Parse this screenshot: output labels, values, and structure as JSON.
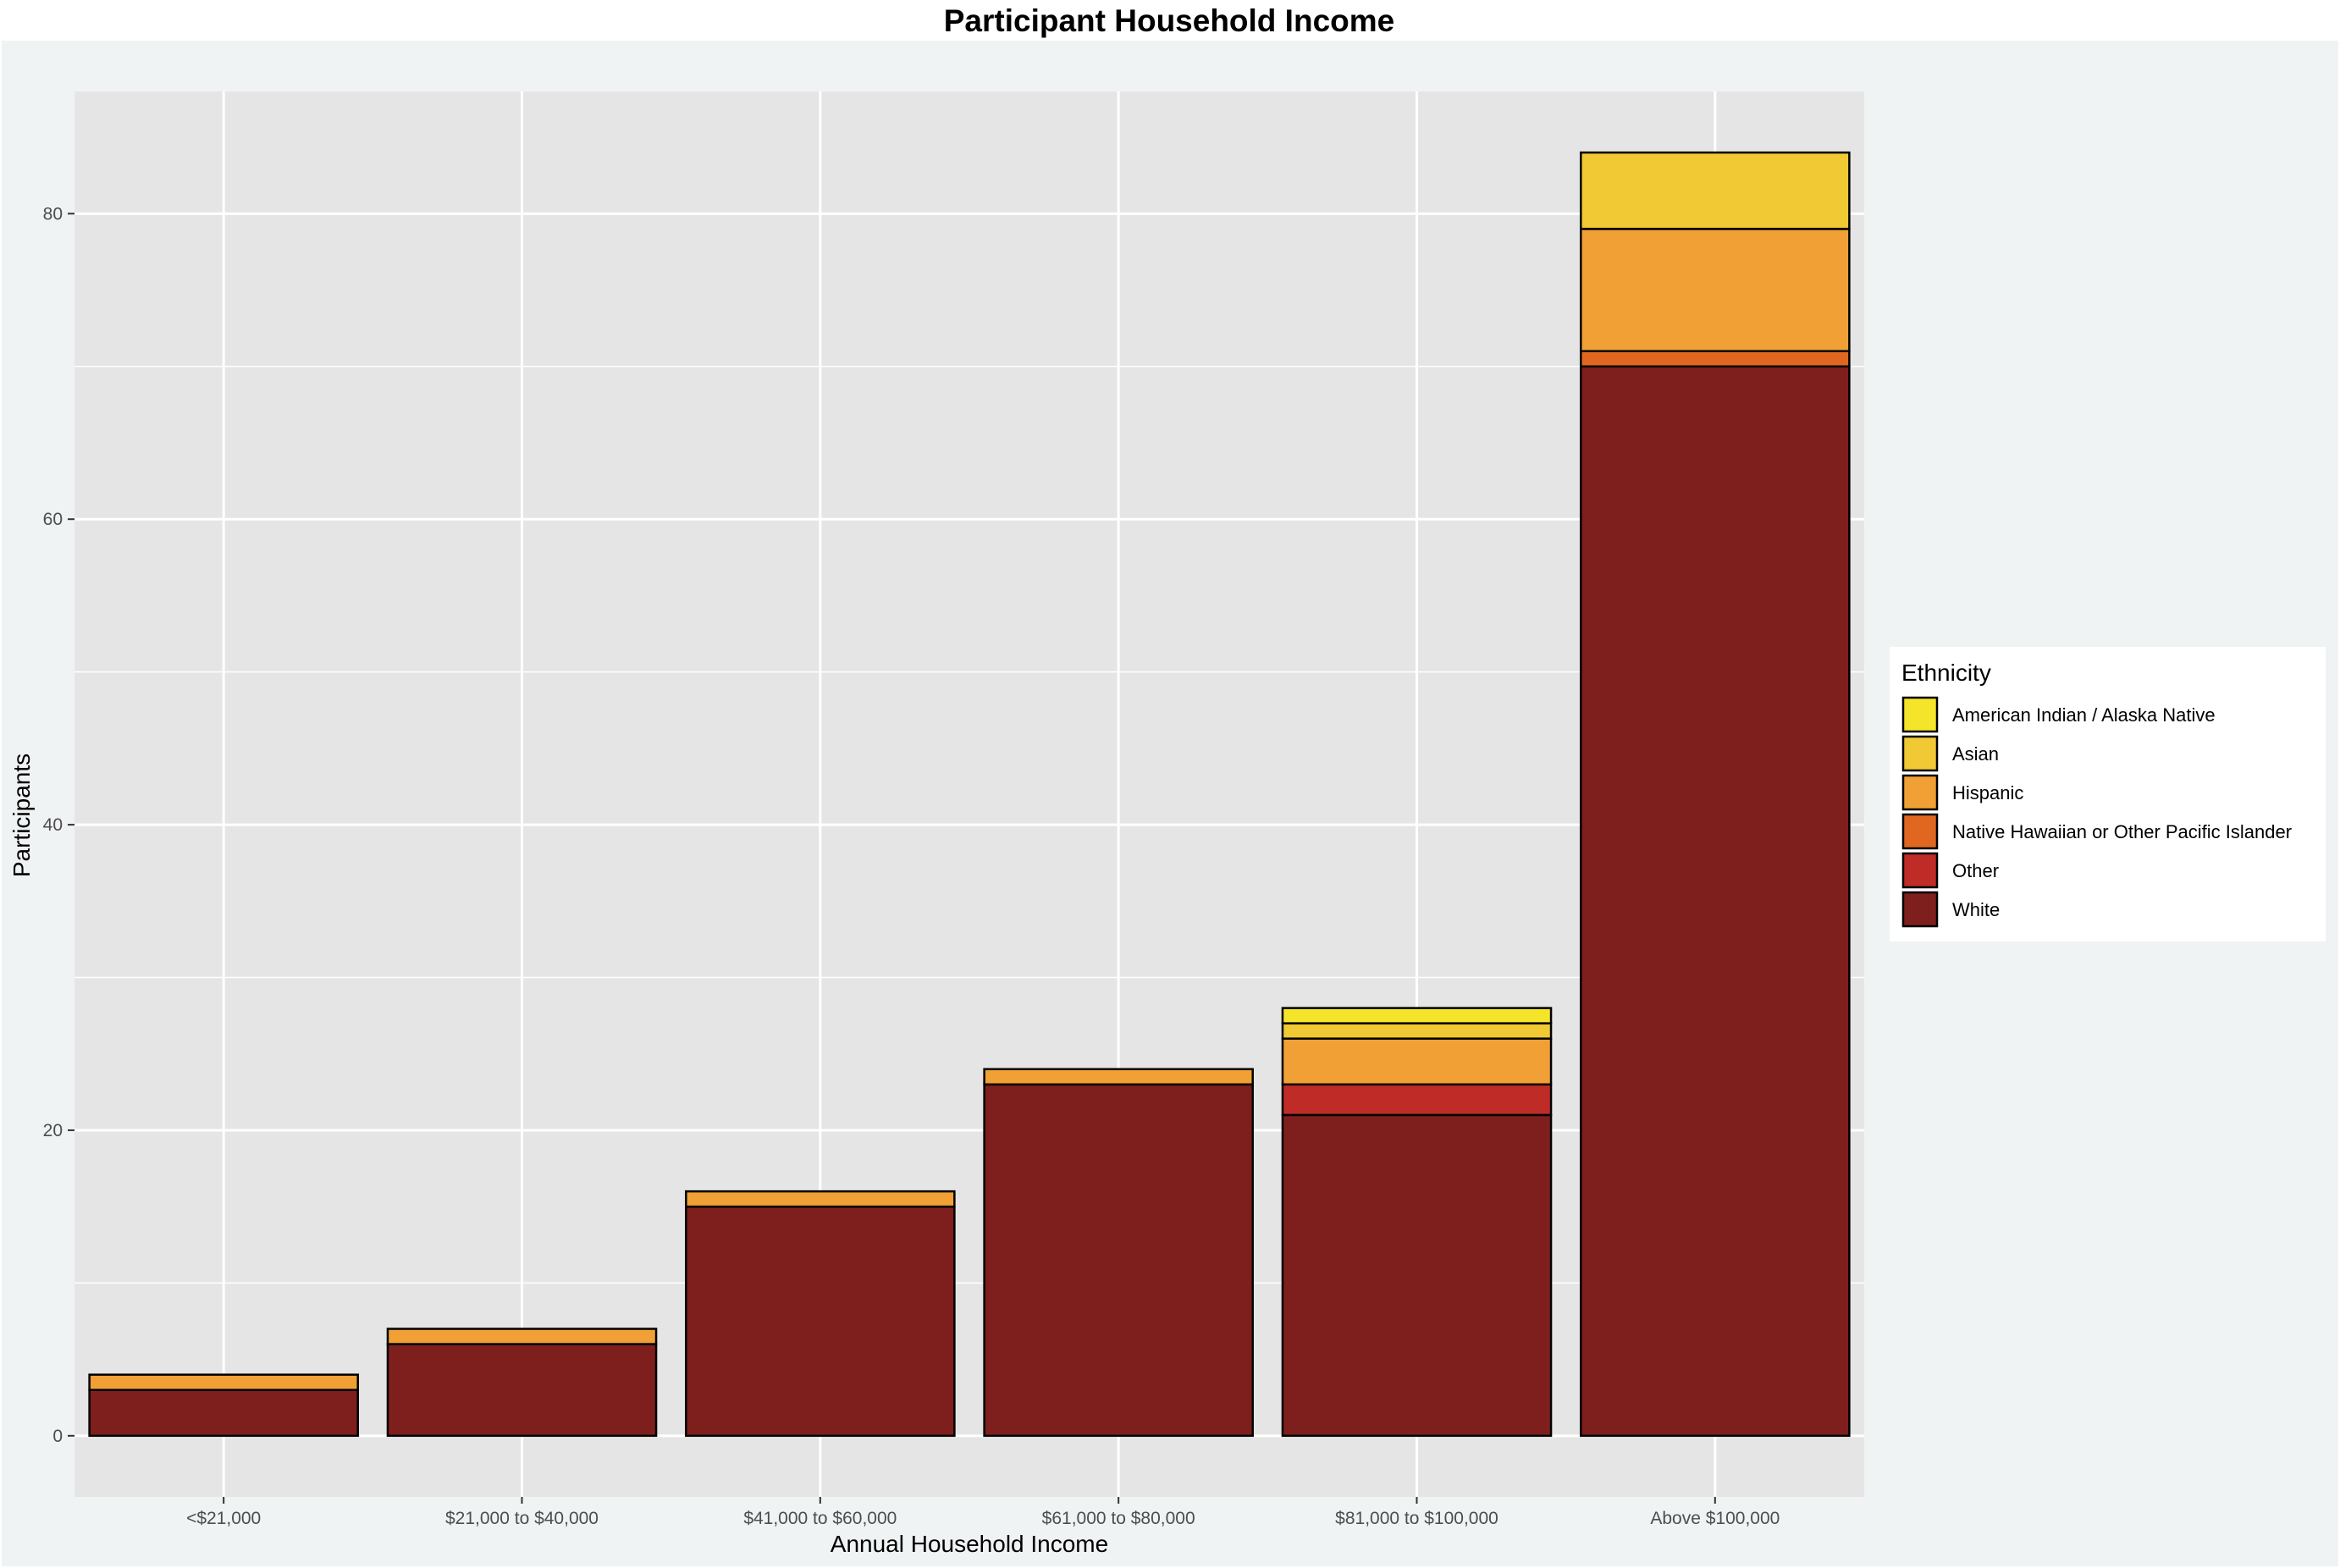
{
  "chart_data": {
    "type": "bar",
    "stacked": true,
    "title": "Participant Household Income",
    "xlabel": "Annual Household Income",
    "ylabel": "Participants",
    "ylim": [
      -4,
      88
    ],
    "y_ticks": [
      0,
      20,
      40,
      60,
      80
    ],
    "categories": [
      "<$21,000",
      "$21,000 to $40,000",
      "$41,000 to $60,000",
      "$61,000 to $80,000",
      "$81,000 to $100,000",
      "Above $100,000"
    ],
    "series": [
      {
        "name": "White",
        "color": "#7f1f1d",
        "values": [
          3,
          6,
          15,
          23,
          21,
          70
        ]
      },
      {
        "name": "Other",
        "color": "#bf2c28",
        "values": [
          0,
          0,
          0,
          0,
          2,
          0
        ]
      },
      {
        "name": "Native Hawaiian or Other Pacific Islander",
        "color": "#e0671f",
        "values": [
          0,
          0,
          0,
          0,
          0,
          1
        ]
      },
      {
        "name": "Hispanic",
        "color": "#f0a035",
        "values": [
          1,
          1,
          1,
          1,
          3,
          8
        ]
      },
      {
        "name": "Asian",
        "color": "#f0c935",
        "values": [
          0,
          0,
          0,
          0,
          1,
          5
        ]
      },
      {
        "name": "American Indian / Alaska Native",
        "color": "#f5e52a",
        "values": [
          0,
          0,
          0,
          0,
          1,
          0
        ]
      }
    ],
    "legend": {
      "title": "Ethnicity",
      "placement": "right",
      "order": [
        "American Indian / Alaska Native",
        "Asian",
        "Hispanic",
        "Native Hawaiian or Other Pacific Islander",
        "Other",
        "White"
      ]
    },
    "grid": true,
    "colors": {
      "page_background": "#f0f3f3",
      "panel_background": "#e5e5e5",
      "grid": "#ffffff",
      "bar_outline": "#000000"
    }
  }
}
